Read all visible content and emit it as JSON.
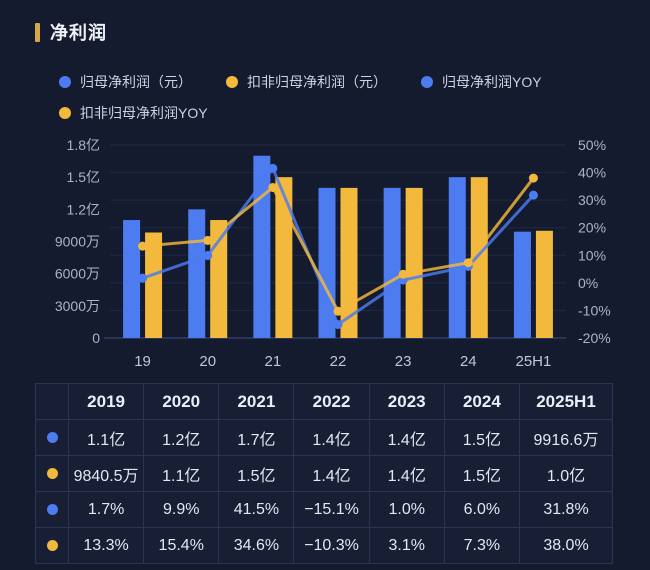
{
  "title": "净利润",
  "colors": {
    "background": "#151b2e",
    "blue": "#4d7bf0",
    "yellow": "#f2b93c",
    "title_marker": "#d8a64d",
    "grid_line": "#1f2944",
    "axis_line": "#28345a",
    "axis_text": "#aab3c7",
    "x_label_text": "#bfc6d6"
  },
  "legend": {
    "items": [
      {
        "label": "归母净利润（元）",
        "color": "#4d7bf0"
      },
      {
        "label": "扣非归母净利润（元）",
        "color": "#f2b93c"
      },
      {
        "label": "归母净利润YOY",
        "color": "#4d7bf0"
      },
      {
        "label": "扣非归母净利润YOY",
        "color": "#f2b93c"
      }
    ]
  },
  "chart_data": {
    "type": "bar",
    "subtype": "bar-line-combo",
    "title": "净利润",
    "categories": [
      "19",
      "20",
      "21",
      "22",
      "23",
      "24",
      "25H1"
    ],
    "series": [
      {
        "name": "归母净利润（元）",
        "kind": "bar",
        "axis": "left",
        "color": "#4d7bf0",
        "values": [
          110000000,
          120000000,
          170000000,
          140000000,
          140000000,
          150000000,
          99166000
        ],
        "labels": [
          "1.1亿",
          "1.2亿",
          "1.7亿",
          "1.4亿",
          "1.4亿",
          "1.5亿",
          "9916.6万"
        ]
      },
      {
        "name": "扣非归母净利润（元）",
        "kind": "bar",
        "axis": "left",
        "color": "#f2b93c",
        "values": [
          98405000,
          110000000,
          150000000,
          140000000,
          140000000,
          150000000,
          100000000
        ],
        "labels": [
          "9840.5万",
          "1.1亿",
          "1.5亿",
          "1.4亿",
          "1.4亿",
          "1.5亿",
          "1.0亿"
        ]
      },
      {
        "name": "归母净利润YOY",
        "kind": "line",
        "axis": "right",
        "color": "#4d7bf0",
        "values": [
          1.7,
          9.9,
          41.5,
          -15.1,
          1.0,
          6.0,
          31.8
        ],
        "labels": [
          "1.7%",
          "9.9%",
          "41.5%",
          "−15.1%",
          "1.0%",
          "6.0%",
          "31.8%"
        ]
      },
      {
        "name": "扣非归母净利润YOY",
        "kind": "line",
        "axis": "right",
        "color": "#f2b93c",
        "values": [
          13.3,
          15.4,
          34.6,
          -10.3,
          3.1,
          7.3,
          38.0
        ],
        "labels": [
          "13.3%",
          "15.4%",
          "34.6%",
          "−10.3%",
          "3.1%",
          "7.3%",
          "38.0%"
        ]
      }
    ],
    "left_axis": {
      "min": 0,
      "max": 180000000,
      "ticks": [
        "0",
        "3000万",
        "6000万",
        "9000万",
        "1.2亿",
        "1.5亿",
        "1.8亿"
      ]
    },
    "right_axis": {
      "min": -20,
      "max": 50,
      "ticks": [
        "-20%",
        "-10%",
        "0%",
        "10%",
        "20%",
        "30%",
        "40%",
        "50%"
      ]
    },
    "grid": true,
    "legend_position": "top"
  },
  "table": {
    "header": [
      "",
      "2019",
      "2020",
      "2021",
      "2022",
      "2023",
      "2024",
      "2025H1"
    ],
    "rows": [
      {
        "dot_color": "#4d7bf0",
        "cells": [
          "1.1亿",
          "1.2亿",
          "1.7亿",
          "1.4亿",
          "1.4亿",
          "1.5亿",
          "9916.6万"
        ]
      },
      {
        "dot_color": "#f2b93c",
        "cells": [
          "9840.5万",
          "1.1亿",
          "1.5亿",
          "1.4亿",
          "1.4亿",
          "1.5亿",
          "1.0亿"
        ]
      },
      {
        "dot_color": "#4d7bf0",
        "cells": [
          "1.7%",
          "9.9%",
          "41.5%",
          "−15.1%",
          "1.0%",
          "6.0%",
          "31.8%"
        ]
      },
      {
        "dot_color": "#f2b93c",
        "cells": [
          "13.3%",
          "15.4%",
          "34.6%",
          "−10.3%",
          "3.1%",
          "7.3%",
          "38.0%"
        ]
      }
    ]
  }
}
